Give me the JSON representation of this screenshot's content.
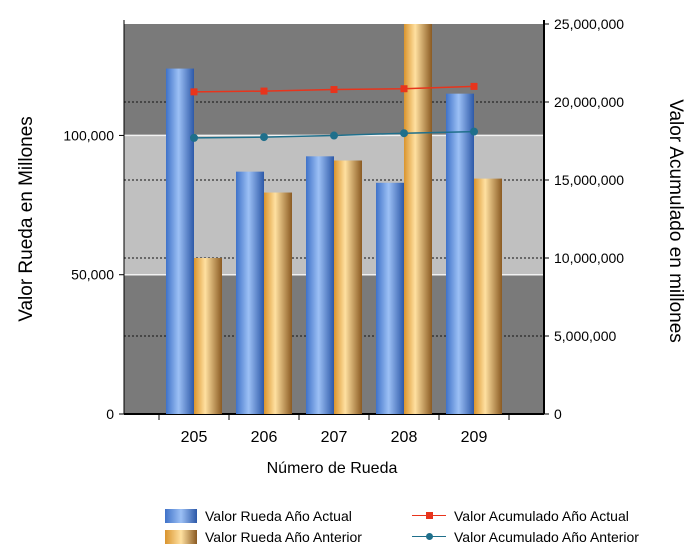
{
  "chart_data": {
    "type": "bar",
    "categories": [
      "205",
      "206",
      "207",
      "208",
      "209"
    ],
    "xlabel": "Número de Rueda",
    "ylabel": "Valor Rueda en Millones",
    "y2label": "Valor Acumulado en millones",
    "ylim": [
      0,
      140000
    ],
    "y2lim": [
      0,
      25000000
    ],
    "yticks": [
      "0",
      "50,000",
      "100,000"
    ],
    "y2ticks": [
      "0",
      "5,000,000",
      "10,000,000",
      "15,000,000",
      "20,000,000",
      "25,000,000"
    ],
    "series": [
      {
        "name": "Valor Rueda Año Actual",
        "type": "bar",
        "axis": "left",
        "values": [
          124000,
          87000,
          92500,
          83000,
          115000
        ],
        "color": "#5b8fe0"
      },
      {
        "name": "Valor Rueda Año Anterior",
        "type": "bar",
        "axis": "left",
        "values": [
          56000,
          79500,
          91000,
          140000,
          84500
        ],
        "color": "#f5b24a"
      },
      {
        "name": "Valor Acumulado Año Actual",
        "type": "line",
        "axis": "right",
        "values": [
          20650000,
          20700000,
          20800000,
          20850000,
          21000000
        ],
        "color": "#e8341c",
        "marker": "square"
      },
      {
        "name": "Valor Acumulado Año Anterior",
        "type": "line",
        "axis": "right",
        "values": [
          17700000,
          17750000,
          17850000,
          18000000,
          18100000
        ],
        "color": "#1f6f8b",
        "marker": "circle"
      }
    ],
    "plot_background": "#7a7a7a",
    "band_color": "#c0c0c0",
    "band_range": [
      50000,
      100000
    ],
    "grid": true,
    "legend_position": "bottom"
  }
}
